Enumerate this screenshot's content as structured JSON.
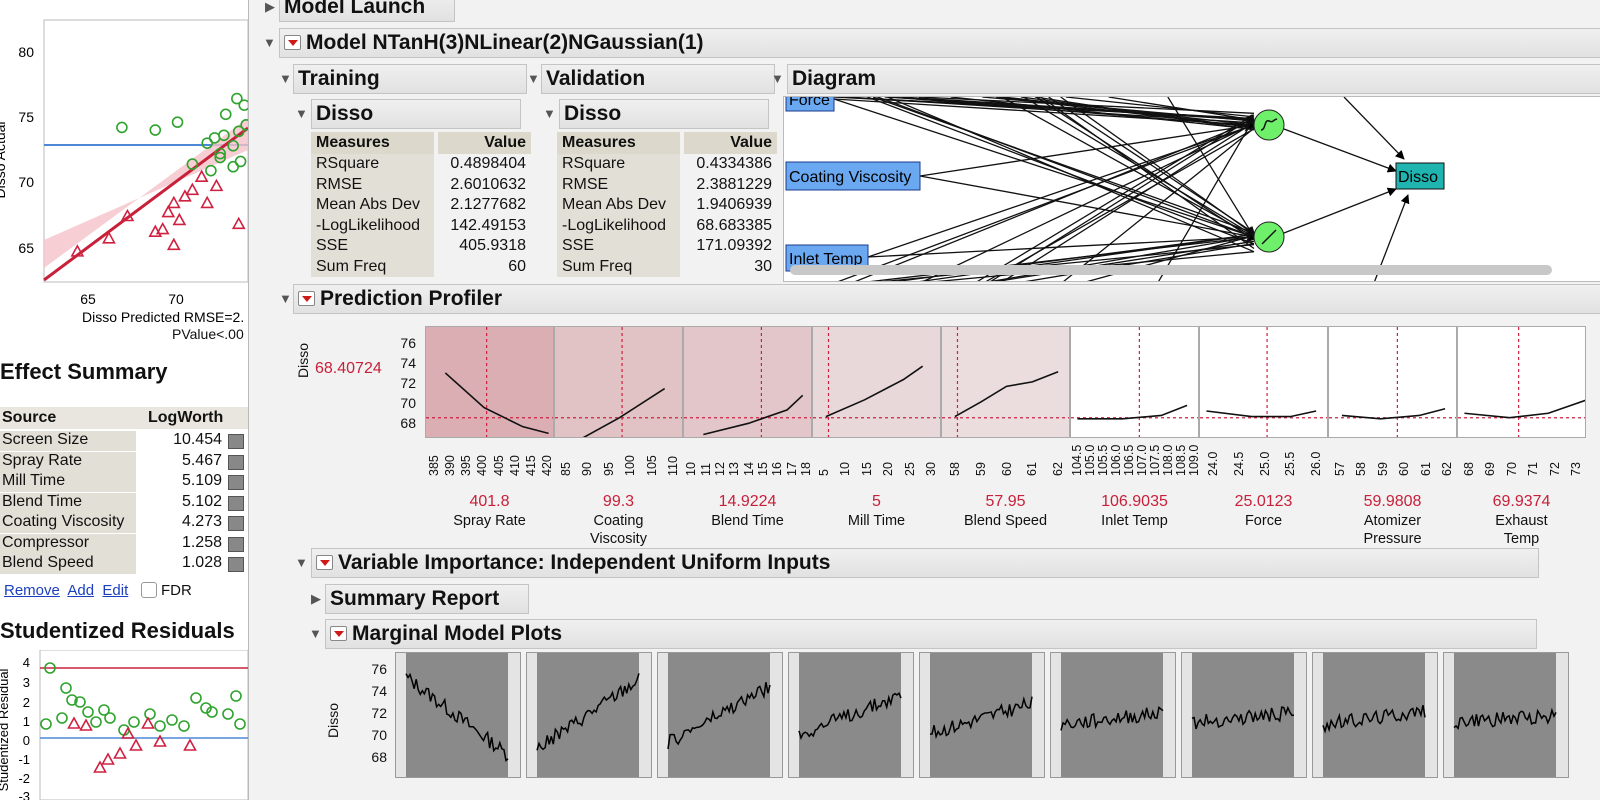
{
  "left": {
    "plot": {
      "y_ticks": [
        "80",
        "75",
        "70",
        "65"
      ],
      "x_ticks": [
        "65",
        "70"
      ],
      "y_label": "Disso Actual",
      "x_label": "Disso Predicted RMSE=2.",
      "p_label": "PValue<.00"
    },
    "effect_summary": {
      "title": "Effect Summary",
      "col_source": "Source",
      "col_logworth": "LogWorth",
      "rows": [
        {
          "source": "Screen Size",
          "logworth": "10.454"
        },
        {
          "source": "Spray Rate",
          "logworth": "5.467"
        },
        {
          "source": "Mill Time",
          "logworth": "5.109"
        },
        {
          "source": "Blend Time",
          "logworth": "5.102"
        },
        {
          "source": "Coating Viscosity",
          "logworth": "4.273"
        },
        {
          "source": "Compressor",
          "logworth": "1.258"
        },
        {
          "source": "Blend Speed",
          "logworth": "1.028"
        }
      ],
      "remove": "Remove",
      "add": "Add",
      "edit": "Edit",
      "fdr": "FDR"
    },
    "residuals": {
      "title": "Studentized Residuals",
      "y_label": "Studentized Residual",
      "y_ticks": [
        "4",
        "3",
        "2",
        "1",
        "0",
        "-1",
        "-2",
        "-3"
      ]
    }
  },
  "report": {
    "model_launch": "Model Launch",
    "model_title": "Model NTanH(3)NLinear(2)NGaussian(1)",
    "training": {
      "title": "Training",
      "sub": "Disso",
      "col_measures": "Measures",
      "col_value": "Value",
      "rows": [
        {
          "m": "RSquare",
          "v": "0.4898404"
        },
        {
          "m": "RMSE",
          "v": "2.6010632"
        },
        {
          "m": "Mean Abs Dev",
          "v": "2.1277682"
        },
        {
          "m": "-LogLikelihood",
          "v": "142.49153"
        },
        {
          "m": "SSE",
          "v": "405.9318"
        },
        {
          "m": "Sum Freq",
          "v": "60"
        }
      ]
    },
    "validation": {
      "title": "Validation",
      "sub": "Disso",
      "col_measures": "Measures",
      "col_value": "Value",
      "rows": [
        {
          "m": "RSquare",
          "v": "0.4334386"
        },
        {
          "m": "RMSE",
          "v": "2.3881229"
        },
        {
          "m": "Mean Abs Dev",
          "v": "1.9406939"
        },
        {
          "m": "-LogLikelihood",
          "v": "68.683385"
        },
        {
          "m": "SSE",
          "v": "171.09392"
        },
        {
          "m": "Sum Freq",
          "v": "30"
        }
      ]
    },
    "diagram": {
      "title": "Diagram",
      "inputs": [
        "Force",
        "Coating Viscosity",
        "Inlet Temp"
      ],
      "output": "Disso",
      "colors": {
        "input": "#6aa9f2",
        "hidden": "#6ef06a",
        "output": "#1fb4b0"
      }
    },
    "profiler": {
      "title": "Prediction Profiler",
      "y_label": "Disso",
      "y_value": "68.40724",
      "y_ticks": [
        "76",
        "74",
        "72",
        "70",
        "68"
      ],
      "factors": [
        {
          "name": "Spray Rate",
          "value": "401.8",
          "ticks": [
            "385",
            "390",
            "395",
            "400",
            "405",
            "410",
            "415",
            "420"
          ]
        },
        {
          "name": "Coating Viscosity",
          "value": "99.3",
          "ticks": [
            "85",
            "90",
            "95",
            "100",
            "105",
            "110"
          ]
        },
        {
          "name": "Blend Time",
          "value": "14.9224",
          "ticks": [
            "10",
            "11",
            "12",
            "13",
            "14",
            "15",
            "16",
            "17",
            "18"
          ]
        },
        {
          "name": "Mill Time",
          "value": "5",
          "ticks": [
            "5",
            "10",
            "15",
            "20",
            "25",
            "30"
          ]
        },
        {
          "name": "Blend Speed",
          "value": "57.95",
          "ticks": [
            "58",
            "59",
            "60",
            "61",
            "62"
          ]
        },
        {
          "name": "Inlet Temp",
          "value": "106.9035",
          "ticks": [
            "104.5",
            "105.0",
            "105.5",
            "106.0",
            "106.5",
            "107.0",
            "107.5",
            "108.0",
            "108.5",
            "109.0"
          ]
        },
        {
          "name": "Force",
          "value": "25.0123",
          "ticks": [
            "24.0",
            "24.5",
            "25.0",
            "25.5",
            "26.0"
          ]
        },
        {
          "name": "Atomizer Pressure",
          "value": "59.9808",
          "ticks": [
            "57",
            "58",
            "59",
            "60",
            "61",
            "62"
          ]
        },
        {
          "name": "Exhaust Temp",
          "value": "69.9374",
          "ticks": [
            "68",
            "69",
            "70",
            "71",
            "72",
            "73"
          ]
        }
      ],
      "importance_shading": [
        0.9,
        0.55,
        0.45,
        0.15,
        0.05,
        0,
        0,
        0,
        0
      ]
    },
    "variable_importance": "Variable Importance: Independent Uniform Inputs",
    "summary_report": "Summary Report",
    "marginal": {
      "title": "Marginal Model Plots",
      "y_label": "Disso",
      "y_ticks": [
        "76",
        "74",
        "72",
        "70",
        "68"
      ]
    }
  },
  "chart_data": [
    {
      "type": "scatter",
      "title": "",
      "xlabel": "Disso Predicted",
      "ylabel": "Disso Actual",
      "xlim": [
        62,
        73
      ],
      "ylim": [
        62,
        82
      ],
      "series": [
        {
          "name": "",
          "points": [
            [
              66.2,
              73.8
            ],
            [
              68,
              73.6
            ],
            [
              69.2,
              74.2
            ],
            [
              70,
              71
            ],
            [
              70.8,
              72.6
            ],
            [
              71.2,
              73
            ],
            [
              71.5,
              71.8
            ],
            [
              71.8,
              74.8
            ],
            [
              72.2,
              72.4
            ],
            [
              72.5,
              73.5
            ],
            [
              72.8,
              75.5
            ],
            [
              72.2,
              70.8
            ],
            [
              71,
              70.5
            ],
            [
              71.5,
              71.5
            ],
            [
              72.6,
              71.2
            ],
            [
              72.9,
              74
            ],
            [
              72.4,
              76
            ],
            [
              71.7,
              73.2
            ]
          ]
        },
        {
          "name": "",
          "points": [
            [
              63.8,
              64.3
            ],
            [
              65.5,
              65.3
            ],
            [
              66.5,
              67
            ],
            [
              68,
              65.8
            ],
            [
              68.4,
              66
            ],
            [
              68.7,
              67.3
            ],
            [
              69,
              68
            ],
            [
              69.3,
              66.7
            ],
            [
              69.6,
              68.5
            ],
            [
              70,
              69
            ],
            [
              70.5,
              70
            ],
            [
              70.8,
              68
            ],
            [
              71.3,
              69.3
            ],
            [
              69,
              64.8
            ],
            [
              72.5,
              66.4
            ]
          ]
        }
      ]
    }
  ]
}
